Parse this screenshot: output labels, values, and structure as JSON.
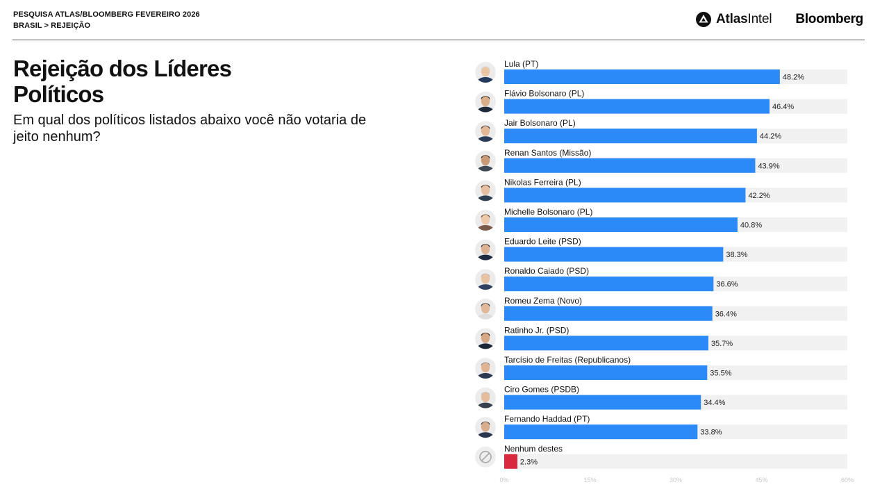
{
  "header": {
    "line1": "PESQUISA ATLAS/BLOOMBERG FEVEREIRO 2026",
    "line2": "BRASIL > REJEIÇÃO",
    "atlas_bold": "Atlas",
    "atlas_regular": "Intel",
    "bloomberg": "Bloomberg"
  },
  "icons": {
    "atlas_logo": "atlasintel-logo-icon",
    "none_option": "prohibited-icon",
    "candidate_photo": "avatar-icon"
  },
  "colors": {
    "bar": "#2b8af7",
    "bar_none": "#d9293e",
    "track": "#f1f1f1"
  },
  "chart_data": {
    "type": "bar",
    "orientation": "horizontal",
    "title": "Rejeição dos Líderes Políticos",
    "subtitle": "Em qual dos políticos listados abaixo você não votaria de jeito nenhum?",
    "unit": "%",
    "xlim": [
      0,
      60
    ],
    "ticks": [
      "0%",
      "15%",
      "30%",
      "45%",
      "60%"
    ],
    "categories": [
      "Lula (PT)",
      "Flávio Bolsonaro (PL)",
      "Jair Bolsonaro (PL)",
      "Renan Santos (Missão)",
      "Nikolas Ferreira (PL)",
      "Michelle Bolsonaro (PL)",
      "Eduardo Leite (PSD)",
      "Ronaldo Caiado (PSD)",
      "Romeu Zema (Novo)",
      "Ratinho Jr. (PSD)",
      "Tarcísio de Freitas (Republicanos)",
      "Ciro Gomes (PSDB)",
      "Fernando Haddad (PT)",
      "Nenhum destes"
    ],
    "values": [
      48.2,
      46.4,
      44.2,
      43.9,
      42.2,
      40.8,
      38.3,
      36.6,
      36.4,
      35.7,
      35.5,
      34.4,
      33.8,
      2.3
    ],
    "value_labels": [
      "48.2%",
      "46.4%",
      "44.2%",
      "43.9%",
      "42.2%",
      "40.8%",
      "38.3%",
      "36.6%",
      "36.4%",
      "35.7%",
      "35.5%",
      "34.4%",
      "33.8%",
      "2.3%"
    ]
  }
}
